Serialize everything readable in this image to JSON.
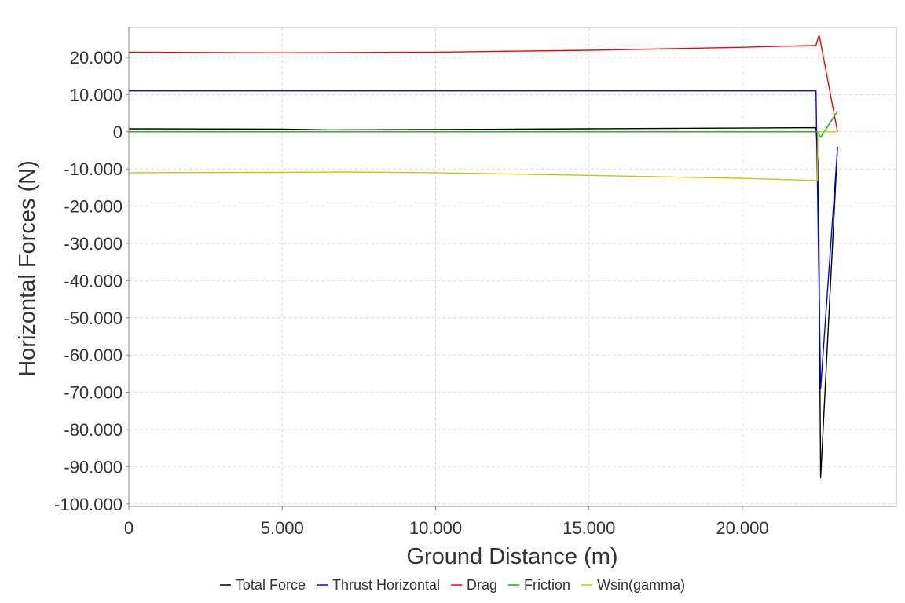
{
  "chart_data": {
    "type": "line",
    "xlabel": "Ground Distance (m)",
    "ylabel": "Horizontal Forces (N)",
    "xlim": [
      0,
      25000
    ],
    "ylim": [
      -101000,
      28000
    ],
    "x_ticks": [
      0,
      5000,
      10000,
      15000,
      20000
    ],
    "x_tick_labels": [
      "0",
      "5.000",
      "10.000",
      "15.000",
      "20.000"
    ],
    "y_ticks": [
      20000,
      10000,
      0,
      -10000,
      -20000,
      -30000,
      -40000,
      -50000,
      -60000,
      -70000,
      -80000,
      -90000,
      -100000
    ],
    "y_tick_labels": [
      "20.000",
      "10.000",
      "0",
      "-10.000",
      "-20.000",
      "-30.000",
      "-40.000",
      "-50.000",
      "-60.000",
      "-70.000",
      "-80.000",
      "-90.000",
      "-100.000"
    ],
    "grid": true,
    "legend_position": "bottom",
    "series": [
      {
        "name": "Total Force",
        "color": "#000000",
        "x": [
          0,
          5000,
          6500,
          10000,
          15000,
          20000,
          22400,
          22480,
          22550,
          23100
        ],
        "y": [
          800,
          700,
          500,
          600,
          800,
          1000,
          1100,
          -10000,
          -93000,
          -4000
        ]
      },
      {
        "name": "Thrust Horizontal",
        "color": "#0000ff",
        "x": [
          0,
          5000,
          10000,
          15000,
          20000,
          22400,
          22550,
          23100
        ],
        "y": [
          11000,
          11000,
          11000,
          11000,
          11000,
          11000,
          -69000,
          -4500
        ]
      },
      {
        "name": "Drag",
        "color": "#ff0000",
        "x": [
          0,
          5000,
          10000,
          15000,
          20000,
          22400,
          22500,
          22550,
          23100
        ],
        "y": [
          21400,
          21200,
          21400,
          21900,
          22700,
          23200,
          26000,
          24000,
          0
        ]
      },
      {
        "name": "Friction",
        "color": "#00bb00",
        "x": [
          0,
          5000,
          10000,
          15000,
          20000,
          22450,
          22550,
          23100
        ],
        "y": [
          0,
          0,
          0,
          0,
          0,
          0,
          -1500,
          5500
        ]
      },
      {
        "name": "Wsin(gamma)",
        "color": "#c8c800",
        "x": [
          0,
          5000,
          7000,
          10000,
          15000,
          20000,
          22450,
          22460,
          23100
        ],
        "y": [
          -11000,
          -10900,
          -10800,
          -11000,
          -11700,
          -12500,
          -13100,
          0,
          0
        ]
      }
    ]
  }
}
